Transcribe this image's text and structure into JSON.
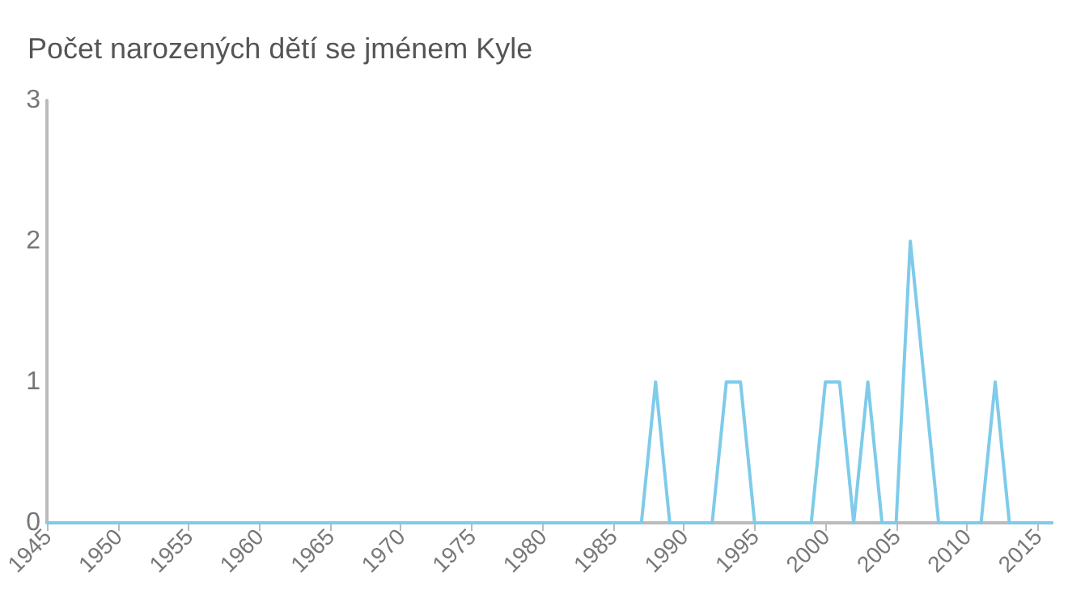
{
  "chart_data": {
    "type": "line",
    "title": "Počet narozených dětí se jménem Kyle",
    "x": [
      1945,
      1946,
      1947,
      1948,
      1949,
      1950,
      1951,
      1952,
      1953,
      1954,
      1955,
      1956,
      1957,
      1958,
      1959,
      1960,
      1961,
      1962,
      1963,
      1964,
      1965,
      1966,
      1967,
      1968,
      1969,
      1970,
      1971,
      1972,
      1973,
      1974,
      1975,
      1976,
      1977,
      1978,
      1979,
      1980,
      1981,
      1982,
      1983,
      1984,
      1985,
      1986,
      1987,
      1988,
      1989,
      1990,
      1991,
      1992,
      1993,
      1994,
      1995,
      1996,
      1997,
      1998,
      1999,
      2000,
      2001,
      2002,
      2003,
      2004,
      2005,
      2006,
      2007,
      2008,
      2009,
      2010,
      2011,
      2012,
      2013,
      2014,
      2015,
      2016
    ],
    "series": [
      {
        "color": "#7ecbea",
        "values": [
          0,
          0,
          0,
          0,
          0,
          0,
          0,
          0,
          0,
          0,
          0,
          0,
          0,
          0,
          0,
          0,
          0,
          0,
          0,
          0,
          0,
          0,
          0,
          0,
          0,
          0,
          0,
          0,
          0,
          0,
          0,
          0,
          0,
          0,
          0,
          0,
          0,
          0,
          0,
          0,
          0,
          0,
          0,
          1,
          0,
          0,
          0,
          0,
          1,
          1,
          0,
          0,
          0,
          0,
          0,
          1,
          1,
          0,
          1,
          0,
          0,
          2,
          1,
          0,
          0,
          0,
          0,
          1,
          0,
          0,
          0,
          0
        ]
      }
    ],
    "xlim": [
      1945,
      2016
    ],
    "xticks": [
      1945,
      1950,
      1955,
      1960,
      1965,
      1970,
      1975,
      1980,
      1985,
      1990,
      1995,
      2000,
      2005,
      2010,
      2015
    ],
    "ylim": [
      0,
      3
    ],
    "yticks": [
      0,
      1,
      2,
      3
    ],
    "grid": false,
    "marker": "none",
    "line_style": "solid"
  }
}
